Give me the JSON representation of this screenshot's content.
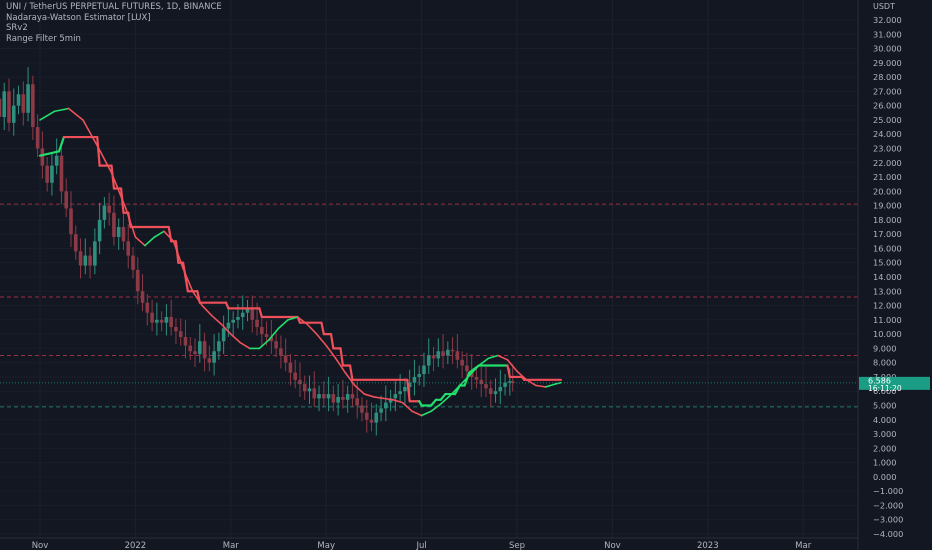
{
  "chart_data": {
    "type": "line",
    "legend_lines": [
      "UNI / TetherUS PERPETUAL FUTURES, 1D, BINANCE",
      "Nadaraya-Watson Estimator [LUX]",
      "SRv2",
      "Range Filter  5min"
    ],
    "currency": "USDT",
    "ylim": [
      -4,
      33
    ],
    "y_ticks": [
      32,
      31,
      30,
      29,
      28,
      27,
      26,
      25,
      24,
      23,
      22,
      21,
      20,
      19,
      18,
      17,
      16,
      15,
      14,
      13,
      12,
      11,
      10,
      9,
      8,
      7,
      6,
      5,
      4,
      3,
      2,
      1,
      0,
      -1,
      -2,
      -3,
      -4
    ],
    "y_tick_labels": [
      "32.000",
      "31.000",
      "30.000",
      "29.000",
      "28.000",
      "27.000",
      "26.000",
      "25.000",
      "24.000",
      "23.000",
      "22.000",
      "21.000",
      "20.000",
      "19.000",
      "18.000",
      "17.000",
      "16.000",
      "15.000",
      "14.000",
      "13.000",
      "12.000",
      "11.000",
      "10.000",
      "9.000",
      "8.000",
      "7.000",
      "6.000",
      "5.000",
      "4.000",
      "3.000",
      "2.000",
      "1.000",
      "0.000",
      "−1.000",
      "−2.000",
      "−3.000",
      "−4.000"
    ],
    "x_ticks": [
      {
        "label": "Nov",
        "month": 1
      },
      {
        "label": "2022",
        "month": 3
      },
      {
        "label": "Mar",
        "month": 5
      },
      {
        "label": "May",
        "month": 7
      },
      {
        "label": "Jul",
        "month": 9
      },
      {
        "label": "Sep",
        "month": 11
      },
      {
        "label": "Nov",
        "month": 13
      },
      {
        "label": "2023",
        "month": 15
      },
      {
        "label": "Mar",
        "month": 17
      }
    ],
    "price_label": {
      "value": 6.586,
      "text": "6.586",
      "countdown": "16:11:20"
    },
    "horizontal_levels": [
      {
        "y": 19.1,
        "color": "#9c2d44"
      },
      {
        "y": 12.6,
        "color": "#9c2d44"
      },
      {
        "y": 8.5,
        "color": "#9c2d44"
      },
      {
        "y": 4.9,
        "color": "#1e7e6f"
      }
    ],
    "price": [
      [
        0.0,
        25.0
      ],
      [
        0.1,
        26.5
      ],
      [
        0.2,
        25.2
      ],
      [
        0.3,
        27.0
      ],
      [
        0.4,
        24.8
      ],
      [
        0.5,
        26.0
      ],
      [
        0.6,
        26.8
      ],
      [
        0.7,
        25.5
      ],
      [
        0.8,
        27.5
      ],
      [
        0.9,
        24.5
      ],
      [
        1.0,
        23.0
      ],
      [
        1.1,
        21.8
      ],
      [
        1.2,
        20.6
      ],
      [
        1.3,
        21.8
      ],
      [
        1.4,
        22.5
      ],
      [
        1.5,
        20.0
      ],
      [
        1.6,
        18.8
      ],
      [
        1.7,
        17.0
      ],
      [
        1.8,
        15.8
      ],
      [
        1.9,
        14.8
      ],
      [
        2.0,
        15.5
      ],
      [
        2.1,
        14.8
      ],
      [
        2.2,
        16.5
      ],
      [
        2.3,
        18.0
      ],
      [
        2.4,
        19.0
      ],
      [
        2.5,
        18.5
      ],
      [
        2.6,
        16.8
      ],
      [
        2.7,
        17.5
      ],
      [
        2.8,
        16.5
      ],
      [
        2.9,
        15.5
      ],
      [
        3.0,
        14.5
      ],
      [
        3.1,
        13.0
      ],
      [
        3.2,
        12.2
      ],
      [
        3.3,
        11.5
      ],
      [
        3.4,
        10.8
      ],
      [
        3.5,
        11.0
      ],
      [
        3.6,
        10.8
      ],
      [
        3.7,
        11.2
      ],
      [
        3.8,
        10.5
      ],
      [
        3.9,
        10.2
      ],
      [
        4.0,
        9.8
      ],
      [
        4.1,
        9.2
      ],
      [
        4.2,
        8.8
      ],
      [
        4.3,
        8.6
      ],
      [
        4.4,
        9.5
      ],
      [
        4.5,
        8.3
      ],
      [
        4.6,
        8.0
      ],
      [
        4.7,
        8.8
      ],
      [
        4.8,
        9.5
      ],
      [
        4.9,
        10.4
      ],
      [
        5.0,
        10.8
      ],
      [
        5.1,
        11.0
      ],
      [
        5.2,
        11.2
      ],
      [
        5.3,
        11.5
      ],
      [
        5.4,
        11.8
      ],
      [
        5.5,
        11.0
      ],
      [
        5.6,
        10.5
      ],
      [
        5.7,
        10.0
      ],
      [
        5.8,
        9.8
      ],
      [
        5.9,
        9.5
      ],
      [
        6.0,
        9.0
      ],
      [
        6.1,
        8.5
      ],
      [
        6.2,
        8.0
      ],
      [
        6.3,
        7.3
      ],
      [
        6.4,
        6.8
      ],
      [
        6.5,
        6.5
      ],
      [
        6.6,
        6.0
      ],
      [
        6.7,
        6.2
      ],
      [
        6.8,
        5.5
      ],
      [
        6.9,
        5.8
      ],
      [
        7.0,
        5.5
      ],
      [
        7.1,
        5.8
      ],
      [
        7.2,
        5.2
      ],
      [
        7.3,
        5.6
      ],
      [
        7.4,
        5.4
      ],
      [
        7.5,
        5.8
      ],
      [
        7.6,
        5.5
      ],
      [
        7.7,
        5.0
      ],
      [
        7.8,
        4.5
      ],
      [
        7.9,
        4.0
      ],
      [
        8.0,
        3.8
      ],
      [
        8.1,
        4.5
      ],
      [
        8.2,
        4.8
      ],
      [
        8.3,
        5.2
      ],
      [
        8.4,
        5.5
      ],
      [
        8.5,
        5.8
      ],
      [
        8.6,
        6.0
      ],
      [
        8.7,
        6.3
      ],
      [
        8.8,
        6.6
      ],
      [
        8.9,
        7.0
      ],
      [
        9.0,
        7.2
      ],
      [
        9.1,
        7.8
      ],
      [
        9.2,
        8.5
      ],
      [
        9.3,
        8.3
      ],
      [
        9.4,
        8.8
      ],
      [
        9.5,
        8.5
      ],
      [
        9.6,
        8.9
      ],
      [
        9.7,
        8.8
      ],
      [
        9.8,
        8.2
      ],
      [
        9.9,
        7.8
      ],
      [
        10.0,
        7.4
      ],
      [
        10.1,
        7.0
      ],
      [
        10.2,
        6.8
      ],
      [
        10.3,
        6.5
      ],
      [
        10.4,
        6.2
      ],
      [
        10.5,
        5.8
      ],
      [
        10.6,
        6.0
      ],
      [
        10.7,
        6.3
      ],
      [
        10.8,
        6.6
      ],
      [
        10.9,
        6.7
      ],
      [
        10.92,
        6.586
      ]
    ],
    "series": [
      {
        "name": "Range Filter",
        "color": "#f0505a",
        "alt_color": "#22e06c",
        "values": [
          [
            0.0,
            22.5
          ],
          [
            0.4,
            22.8
          ],
          [
            0.5,
            23.8
          ],
          [
            1.2,
            23.8
          ],
          [
            1.25,
            21.8
          ],
          [
            1.5,
            21.8
          ],
          [
            1.55,
            20.2
          ],
          [
            1.7,
            20.2
          ],
          [
            1.75,
            18.5
          ],
          [
            1.85,
            18.5
          ],
          [
            1.9,
            17.5
          ],
          [
            2.7,
            17.5
          ],
          [
            2.75,
            16.5
          ],
          [
            2.85,
            16.5
          ],
          [
            2.9,
            15.0
          ],
          [
            3.0,
            15.0
          ],
          [
            3.05,
            14.0
          ],
          [
            3.1,
            13.0
          ],
          [
            3.3,
            13.0
          ],
          [
            3.35,
            12.2
          ],
          [
            3.9,
            12.2
          ],
          [
            3.95,
            11.8
          ],
          [
            4.6,
            11.8
          ],
          [
            4.65,
            11.2
          ],
          [
            5.4,
            11.2
          ],
          [
            5.45,
            10.8
          ],
          [
            5.9,
            10.8
          ],
          [
            5.95,
            10.0
          ],
          [
            6.1,
            10.0
          ],
          [
            6.15,
            9.0
          ],
          [
            6.3,
            9.0
          ],
          [
            6.35,
            7.8
          ],
          [
            6.5,
            7.8
          ],
          [
            6.55,
            6.8
          ],
          [
            7.7,
            6.8
          ],
          [
            7.75,
            5.3
          ],
          [
            7.95,
            5.3
          ],
          [
            8.0,
            5.0
          ],
          [
            8.2,
            5.0
          ],
          [
            8.3,
            5.4
          ],
          [
            8.4,
            5.4
          ],
          [
            8.5,
            5.8
          ],
          [
            8.7,
            5.8
          ],
          [
            8.8,
            6.4
          ],
          [
            8.9,
            6.4
          ],
          [
            9.0,
            7.3
          ],
          [
            9.2,
            7.8
          ],
          [
            9.8,
            7.8
          ],
          [
            9.85,
            7.0
          ],
          [
            10.1,
            7.0
          ],
          [
            10.15,
            6.8
          ],
          [
            10.92,
            6.8
          ]
        ],
        "green_ranges": [
          [
            0.0,
            0.45
          ],
          [
            7.95,
            9.8
          ]
        ]
      },
      {
        "name": "Nadaraya-Watson Estimator",
        "color": "#f0505a",
        "alt_color": "#22e06c",
        "values": [
          [
            0.0,
            25.0
          ],
          [
            0.3,
            25.6
          ],
          [
            0.6,
            25.8
          ],
          [
            0.9,
            25.0
          ],
          [
            1.2,
            23.2
          ],
          [
            1.5,
            21.3
          ],
          [
            1.8,
            18.8
          ],
          [
            2.0,
            16.8
          ],
          [
            2.2,
            16.2
          ],
          [
            2.4,
            16.8
          ],
          [
            2.6,
            17.2
          ],
          [
            2.8,
            16.5
          ],
          [
            3.0,
            14.6
          ],
          [
            3.2,
            13.0
          ],
          [
            3.4,
            12.0
          ],
          [
            3.6,
            11.3
          ],
          [
            3.8,
            10.7
          ],
          [
            4.0,
            10.0
          ],
          [
            4.2,
            9.4
          ],
          [
            4.4,
            9.0
          ],
          [
            4.6,
            9.0
          ],
          [
            4.8,
            9.6
          ],
          [
            5.0,
            10.4
          ],
          [
            5.2,
            11.0
          ],
          [
            5.4,
            11.2
          ],
          [
            5.6,
            10.7
          ],
          [
            5.8,
            10.0
          ],
          [
            6.0,
            9.2
          ],
          [
            6.2,
            8.3
          ],
          [
            6.4,
            7.3
          ],
          [
            6.6,
            6.4
          ],
          [
            6.8,
            5.8
          ],
          [
            7.0,
            5.6
          ],
          [
            7.2,
            5.5
          ],
          [
            7.4,
            5.4
          ],
          [
            7.6,
            5.2
          ],
          [
            7.8,
            4.6
          ],
          [
            8.0,
            4.3
          ],
          [
            8.2,
            4.6
          ],
          [
            8.4,
            5.1
          ],
          [
            8.6,
            5.7
          ],
          [
            8.8,
            6.4
          ],
          [
            9.0,
            7.1
          ],
          [
            9.2,
            7.8
          ],
          [
            9.4,
            8.3
          ],
          [
            9.6,
            8.5
          ],
          [
            9.8,
            8.2
          ],
          [
            10.0,
            7.4
          ],
          [
            10.2,
            6.8
          ],
          [
            10.4,
            6.4
          ],
          [
            10.6,
            6.3
          ],
          [
            10.8,
            6.5
          ],
          [
            10.92,
            6.6
          ]
        ],
        "green_ranges": [
          [
            0.0,
            0.6
          ],
          [
            2.2,
            2.6
          ],
          [
            4.5,
            5.4
          ],
          [
            8.0,
            9.6
          ],
          [
            10.6,
            10.92
          ]
        ]
      }
    ]
  }
}
